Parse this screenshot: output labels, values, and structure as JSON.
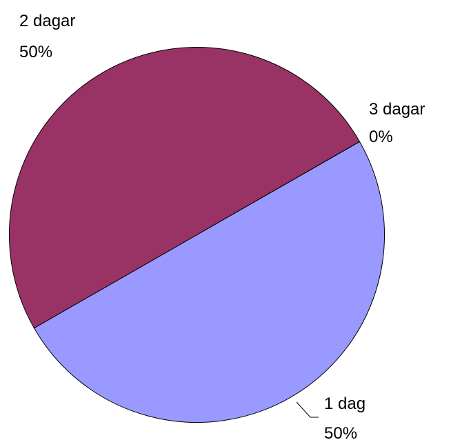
{
  "chart_data": {
    "type": "pie",
    "categories": [
      "1 dag",
      "2 dagar",
      "3 dagar"
    ],
    "values": [
      50,
      50,
      0
    ],
    "value_labels": [
      "50%",
      "50%",
      "0%"
    ],
    "colors": [
      "#9999ff",
      "#993366",
      "#ffffcc"
    ]
  }
}
